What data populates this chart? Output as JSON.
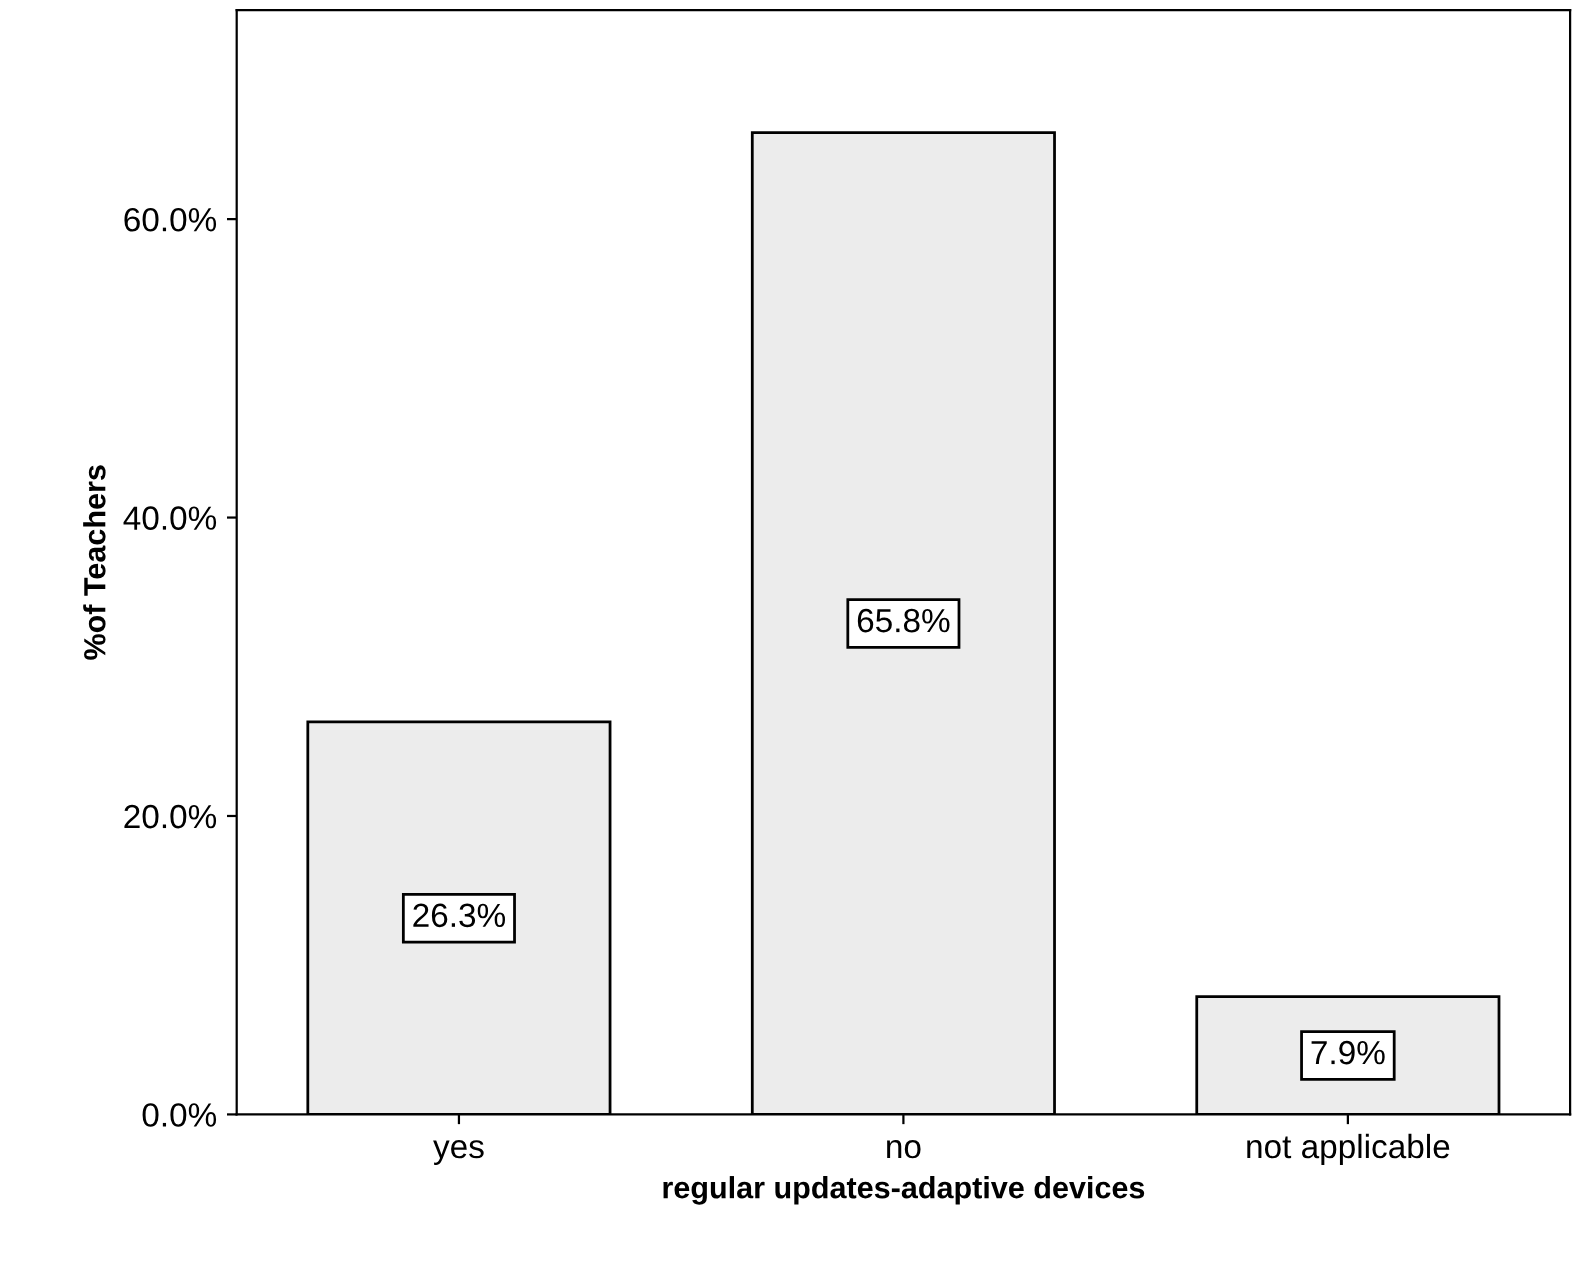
{
  "chart_data": {
    "type": "bar",
    "xlabel": "regular updates-adaptive devices",
    "ylabel": "%of Teachers",
    "categories": [
      "yes",
      "no",
      "not applicable"
    ],
    "values": [
      26.3,
      65.8,
      7.9
    ],
    "value_labels": [
      "26.3%",
      "65.8%",
      "7.9%"
    ],
    "color": "#ececec",
    "ylim": [
      0,
      74
    ],
    "yticks": [
      {
        "value": 0,
        "label": "0.0%"
      },
      {
        "value": 20,
        "label": "20.0%"
      },
      {
        "value": 40,
        "label": "40.0%"
      },
      {
        "value": 60,
        "label": "60.0%"
      }
    ],
    "grid": false
  }
}
